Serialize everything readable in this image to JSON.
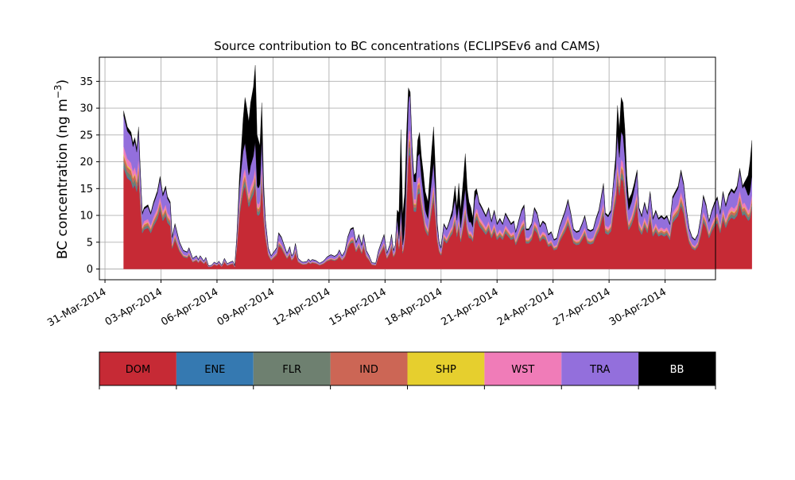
{
  "chart_data": {
    "type": "area",
    "title": "Source contribution to BC concentrations (ECLIPSEv6 and CAMS)",
    "ylabel": "BC concentration (ng m",
    "ylabel_superscript": "−3",
    "ylabel_close": ")",
    "xlabel": "",
    "x_tick_labels": [
      "31-Mar-2014",
      "03-Apr-2014",
      "06-Apr-2014",
      "09-Apr-2014",
      "12-Apr-2014",
      "15-Apr-2014",
      "18-Apr-2014",
      "21-Apr-2014",
      "24-Apr-2014",
      "27-Apr-2014",
      "30-Apr-2014"
    ],
    "y_ticks": [
      0,
      5,
      10,
      15,
      20,
      25,
      30,
      35
    ],
    "xlim_days_from_31_mar": [
      -0.3,
      32.7
    ],
    "ylim": [
      -2,
      39.5
    ],
    "grid": true,
    "legend_placement": "below plot, horizontal color bar",
    "series": [
      {
        "name": "DOM",
        "color": "#c62a35"
      },
      {
        "name": "ENE",
        "color": "#3579b1"
      },
      {
        "name": "FLR",
        "color": "#6e8070"
      },
      {
        "name": "IND",
        "color": "#cc6655"
      },
      {
        "name": "SHP",
        "color": "#e6cf2e"
      },
      {
        "name": "WST",
        "color": "#f07cb8"
      },
      {
        "name": "TRA",
        "color": "#936fdc"
      },
      {
        "name": "BB",
        "color": "#000000"
      }
    ],
    "total_profile": [
      [
        1.0,
        29.5
      ],
      [
        1.2,
        26.5
      ],
      [
        1.4,
        25.5
      ],
      [
        1.5,
        23.5
      ],
      [
        1.6,
        24.5
      ],
      [
        1.7,
        22.5
      ],
      [
        1.8,
        26.5
      ],
      [
        1.9,
        18.0
      ],
      [
        2.0,
        10.5
      ],
      [
        2.1,
        11.5
      ],
      [
        2.3,
        12.0
      ],
      [
        2.45,
        10.5
      ],
      [
        2.6,
        12.5
      ],
      [
        2.8,
        14.5
      ],
      [
        2.95,
        17.3
      ],
      [
        3.1,
        14.0
      ],
      [
        3.25,
        15.5
      ],
      [
        3.35,
        13.5
      ],
      [
        3.5,
        12.5
      ],
      [
        3.6,
        6.0
      ],
      [
        3.75,
        8.5
      ],
      [
        4.0,
        5.0
      ],
      [
        4.2,
        3.5
      ],
      [
        4.4,
        3.2
      ],
      [
        4.5,
        4.0
      ],
      [
        4.7,
        2.0
      ],
      [
        4.9,
        2.5
      ],
      [
        5.0,
        1.8
      ],
      [
        5.1,
        2.5
      ],
      [
        5.3,
        1.5
      ],
      [
        5.4,
        2.2
      ],
      [
        5.55,
        0.6
      ],
      [
        5.7,
        0.7
      ],
      [
        5.85,
        1.3
      ],
      [
        6.0,
        1.0
      ],
      [
        6.1,
        1.5
      ],
      [
        6.25,
        0.7
      ],
      [
        6.4,
        2.0
      ],
      [
        6.55,
        1.0
      ],
      [
        6.7,
        1.3
      ],
      [
        6.85,
        1.5
      ],
      [
        6.95,
        0.6
      ],
      [
        7.05,
        5.5
      ],
      [
        7.2,
        17.0
      ],
      [
        7.4,
        28.0
      ],
      [
        7.5,
        32.0
      ],
      [
        7.6,
        30.0
      ],
      [
        7.7,
        27.5
      ],
      [
        7.8,
        31.0
      ],
      [
        7.95,
        34.0
      ],
      [
        8.05,
        38.0
      ],
      [
        8.15,
        25.0
      ],
      [
        8.3,
        23.0
      ],
      [
        8.4,
        31.0
      ],
      [
        8.5,
        16.0
      ],
      [
        8.6,
        9.0
      ],
      [
        8.75,
        4.0
      ],
      [
        8.9,
        2.5
      ],
      [
        9.0,
        3.0
      ],
      [
        9.1,
        3.5
      ],
      [
        9.2,
        4.0
      ],
      [
        9.3,
        6.8
      ],
      [
        9.45,
        6.0
      ],
      [
        9.6,
        4.5
      ],
      [
        9.75,
        3.0
      ],
      [
        9.9,
        4.2
      ],
      [
        10.0,
        2.5
      ],
      [
        10.1,
        3.0
      ],
      [
        10.2,
        4.8
      ],
      [
        10.35,
        2.0
      ],
      [
        10.5,
        1.5
      ],
      [
        10.6,
        1.3
      ],
      [
        10.8,
        1.4
      ],
      [
        10.9,
        1.9
      ],
      [
        11.0,
        1.5
      ],
      [
        11.1,
        1.8
      ],
      [
        11.3,
        1.6
      ],
      [
        11.5,
        1.1
      ],
      [
        11.7,
        1.5
      ],
      [
        11.9,
        2.3
      ],
      [
        12.1,
        2.7
      ],
      [
        12.3,
        2.4
      ],
      [
        12.45,
        2.8
      ],
      [
        12.55,
        3.6
      ],
      [
        12.7,
        2.5
      ],
      [
        12.85,
        3.4
      ],
      [
        13.0,
        6.0
      ],
      [
        13.15,
        7.5
      ],
      [
        13.3,
        7.8
      ],
      [
        13.45,
        5.0
      ],
      [
        13.6,
        6.5
      ],
      [
        13.75,
        4.5
      ],
      [
        13.85,
        6.5
      ],
      [
        14.0,
        3.5
      ],
      [
        14.15,
        2.5
      ],
      [
        14.3,
        1.2
      ],
      [
        14.5,
        1.1
      ],
      [
        14.65,
        3.5
      ],
      [
        14.8,
        5.0
      ],
      [
        14.95,
        6.5
      ],
      [
        15.1,
        3.0
      ],
      [
        15.25,
        4.5
      ],
      [
        15.35,
        6.5
      ],
      [
        15.45,
        3.5
      ],
      [
        15.55,
        4.5
      ],
      [
        15.65,
        11.0
      ],
      [
        15.75,
        10.5
      ],
      [
        15.85,
        26.0
      ],
      [
        15.95,
        10.0
      ],
      [
        16.05,
        14.0
      ],
      [
        16.15,
        25.0
      ],
      [
        16.25,
        33.8
      ],
      [
        16.35,
        33.0
      ],
      [
        16.45,
        23.0
      ],
      [
        16.55,
        17.5
      ],
      [
        16.65,
        18.0
      ],
      [
        16.75,
        24.0
      ],
      [
        16.85,
        25.5
      ],
      [
        16.95,
        21.0
      ],
      [
        17.05,
        18.0
      ],
      [
        17.15,
        14.5
      ],
      [
        17.3,
        12.5
      ],
      [
        17.45,
        20.0
      ],
      [
        17.6,
        26.5
      ],
      [
        17.7,
        18.5
      ],
      [
        17.8,
        8.5
      ],
      [
        17.9,
        5.0
      ],
      [
        18.0,
        4.0
      ],
      [
        18.15,
        8.5
      ],
      [
        18.3,
        7.5
      ],
      [
        18.45,
        9.0
      ],
      [
        18.6,
        11.0
      ],
      [
        18.75,
        15.5
      ],
      [
        18.85,
        11.5
      ],
      [
        18.95,
        16.0
      ],
      [
        19.05,
        11.0
      ],
      [
        19.15,
        15.0
      ],
      [
        19.3,
        21.5
      ],
      [
        19.4,
        15.0
      ],
      [
        19.5,
        12.5
      ],
      [
        19.6,
        11.5
      ],
      [
        19.7,
        9.5
      ],
      [
        19.8,
        14.5
      ],
      [
        19.9,
        15.0
      ],
      [
        20.05,
        12.5
      ],
      [
        20.2,
        11.5
      ],
      [
        20.4,
        10.0
      ],
      [
        20.55,
        11.5
      ],
      [
        20.7,
        9.0
      ],
      [
        20.85,
        11.0
      ],
      [
        21.0,
        8.5
      ],
      [
        21.15,
        9.5
      ],
      [
        21.3,
        8.5
      ],
      [
        21.45,
        10.5
      ],
      [
        21.6,
        9.5
      ],
      [
        21.75,
        8.5
      ],
      [
        21.9,
        9.0
      ],
      [
        22.0,
        7.0
      ],
      [
        22.15,
        9.0
      ],
      [
        22.3,
        11.0
      ],
      [
        22.45,
        12.0
      ],
      [
        22.55,
        7.5
      ],
      [
        22.7,
        7.5
      ],
      [
        22.85,
        8.5
      ],
      [
        23.0,
        11.5
      ],
      [
        23.15,
        10.5
      ],
      [
        23.3,
        8.0
      ],
      [
        23.45,
        9.0
      ],
      [
        23.6,
        8.5
      ],
      [
        23.75,
        6.5
      ],
      [
        23.9,
        7.0
      ],
      [
        24.05,
        5.5
      ],
      [
        24.2,
        5.8
      ],
      [
        24.35,
        8.0
      ],
      [
        24.5,
        9.5
      ],
      [
        24.65,
        11.0
      ],
      [
        24.8,
        13.0
      ],
      [
        24.95,
        10.5
      ],
      [
        25.1,
        7.5
      ],
      [
        25.25,
        7.0
      ],
      [
        25.4,
        7.2
      ],
      [
        25.55,
        8.5
      ],
      [
        25.7,
        10.0
      ],
      [
        25.85,
        7.5
      ],
      [
        26.0,
        7.2
      ],
      [
        26.15,
        7.5
      ],
      [
        26.3,
        9.5
      ],
      [
        26.45,
        11.0
      ],
      [
        26.55,
        13.0
      ],
      [
        26.7,
        16.0
      ],
      [
        26.8,
        10.5
      ],
      [
        26.95,
        10.0
      ],
      [
        27.1,
        11.0
      ],
      [
        27.25,
        17.0
      ],
      [
        27.35,
        21.0
      ],
      [
        27.45,
        30.5
      ],
      [
        27.55,
        26.0
      ],
      [
        27.65,
        32.0
      ],
      [
        27.75,
        31.0
      ],
      [
        27.85,
        26.0
      ],
      [
        27.95,
        17.5
      ],
      [
        28.05,
        13.0
      ],
      [
        28.2,
        14.0
      ],
      [
        28.35,
        16.0
      ],
      [
        28.5,
        18.5
      ],
      [
        28.6,
        11.5
      ],
      [
        28.75,
        10.0
      ],
      [
        28.9,
        12.5
      ],
      [
        29.05,
        10.5
      ],
      [
        29.2,
        14.5
      ],
      [
        29.35,
        9.5
      ],
      [
        29.5,
        11.0
      ],
      [
        29.65,
        9.5
      ],
      [
        29.8,
        10.0
      ],
      [
        29.95,
        9.5
      ],
      [
        30.1,
        10.0
      ],
      [
        30.25,
        8.5
      ],
      [
        30.4,
        13.5
      ],
      [
        30.55,
        14.5
      ],
      [
        30.7,
        15.5
      ],
      [
        30.85,
        18.5
      ],
      [
        31.0,
        16.0
      ],
      [
        31.15,
        11.0
      ],
      [
        31.3,
        7.5
      ],
      [
        31.45,
        6.0
      ],
      [
        31.6,
        5.5
      ],
      [
        31.75,
        6.5
      ],
      [
        31.9,
        9.5
      ],
      [
        32.05,
        13.8
      ],
      [
        32.2,
        12.0
      ],
      [
        32.35,
        9.0
      ],
      [
        32.5,
        11.0
      ],
      [
        32.65,
        12.5
      ],
      [
        32.8,
        13.5
      ],
      [
        32.95,
        10.5
      ],
      [
        33.1,
        14.5
      ],
      [
        33.25,
        12.0
      ],
      [
        33.4,
        14.0
      ],
      [
        33.55,
        15.0
      ],
      [
        33.7,
        14.5
      ],
      [
        33.85,
        15.5
      ],
      [
        34.0,
        18.8
      ],
      [
        34.15,
        15.5
      ],
      [
        34.3,
        16.5
      ],
      [
        34.45,
        17.5
      ],
      [
        34.55,
        20.0
      ],
      [
        34.65,
        24.0
      ]
    ],
    "bb_events": [
      {
        "start": 6.95,
        "end": 8.65,
        "peak": 8.05,
        "max_fraction": 0.38
      },
      {
        "start": 15.6,
        "end": 16.3,
        "peak": 15.85,
        "max_fraction": 0.55
      },
      {
        "start": 16.3,
        "end": 17.9,
        "peak": 17.55,
        "max_fraction": 0.25
      },
      {
        "start": 18.4,
        "end": 20.0,
        "peak": 19.3,
        "max_fraction": 0.3
      },
      {
        "start": 27.2,
        "end": 28.6,
        "peak": 27.6,
        "max_fraction": 0.2
      },
      {
        "start": 34.2,
        "end": 34.7,
        "peak": 34.65,
        "max_fraction": 0.28
      }
    ],
    "source_fractions": {
      "DOM": 0.66,
      "ENE": 0.01,
      "FLR": 0.035,
      "IND": 0.035,
      "SHP": 0.01,
      "WST": 0.05,
      "TRA": 0.2
    }
  }
}
